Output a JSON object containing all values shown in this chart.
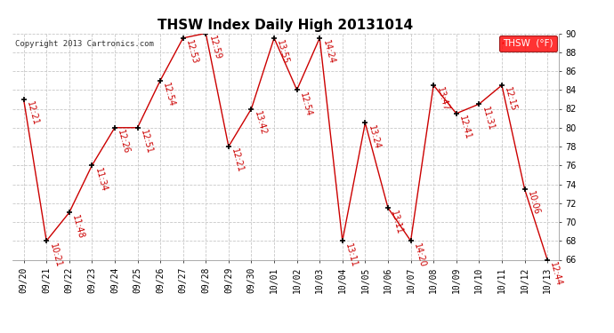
{
  "title": "THSW Index Daily High 20131014",
  "copyright": "Copyright 2013 Cartronics.com",
  "legend_label": "THSW  (°F)",
  "background_color": "#ffffff",
  "plot_bg_color": "#ffffff",
  "line_color": "#cc0000",
  "marker_color": "#000000",
  "ylim": [
    66.0,
    90.0
  ],
  "yticks": [
    66.0,
    68.0,
    70.0,
    72.0,
    74.0,
    76.0,
    78.0,
    80.0,
    82.0,
    84.0,
    86.0,
    88.0,
    90.0
  ],
  "dates": [
    "09/20",
    "09/21",
    "09/22",
    "09/23",
    "09/24",
    "09/25",
    "09/26",
    "09/27",
    "09/28",
    "09/29",
    "09/30",
    "10/01",
    "10/02",
    "10/03",
    "10/04",
    "10/05",
    "10/06",
    "10/07",
    "10/08",
    "10/09",
    "10/10",
    "10/11",
    "10/12",
    "10/13"
  ],
  "values": [
    83.0,
    68.0,
    71.0,
    76.0,
    80.0,
    80.0,
    85.0,
    89.5,
    90.0,
    78.0,
    82.0,
    89.5,
    84.0,
    89.5,
    68.0,
    80.5,
    71.5,
    68.0,
    84.5,
    81.5,
    82.5,
    84.5,
    73.5,
    66.0
  ],
  "times": [
    "12:21",
    "10:21",
    "11:48",
    "11:34",
    "12:26",
    "12:51",
    "12:54",
    "12:53",
    "12:59",
    "12:21",
    "13:42",
    "13:55",
    "12:54",
    "14:24",
    "13:11",
    "13:24",
    "13:11",
    "14:20",
    "13:47",
    "12:41",
    "11:31",
    "12:15",
    "10:06",
    "12:44"
  ],
  "title_fontsize": 11,
  "tick_fontsize": 7,
  "annot_fontsize": 7,
  "grid_color": "#c8c8c8"
}
